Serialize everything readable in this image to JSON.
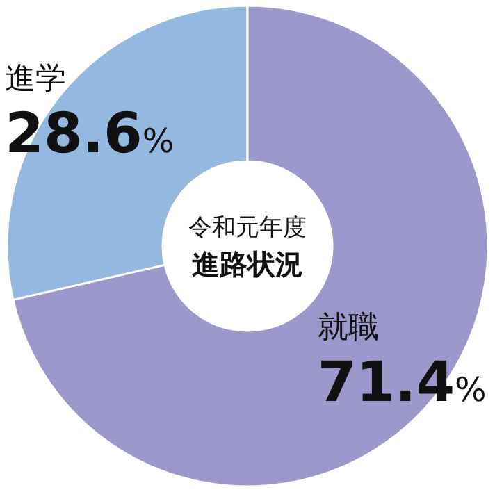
{
  "chart_data": {
    "type": "donut",
    "title": "令和元年度",
    "subtitle": "進路状況",
    "categories": [
      "進学",
      "就職"
    ],
    "values": [
      28.6,
      71.4
    ],
    "colors": [
      "#95b8e0",
      "#9d98cb"
    ],
    "value_labels": [
      "28.6%",
      "71.4%"
    ]
  }
}
